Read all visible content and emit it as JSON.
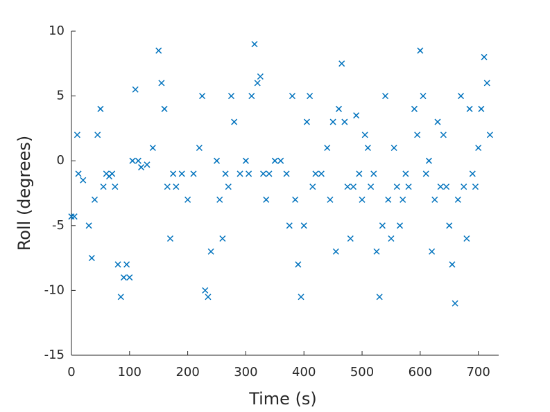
{
  "chart_data": {
    "type": "scatter",
    "x_label": "Time (s)",
    "y_label": "Roll (degrees)",
    "marker": "x",
    "color": "#0072bd",
    "xlim": [
      0,
      735
    ],
    "ylim": [
      -15,
      10
    ],
    "xticks": [
      0,
      100,
      200,
      300,
      400,
      500,
      600,
      700
    ],
    "yticks": [
      -15,
      -10,
      -5,
      0,
      5,
      10
    ],
    "x": [
      0,
      5,
      10,
      12,
      20,
      30,
      35,
      40,
      45,
      50,
      55,
      60,
      65,
      70,
      75,
      80,
      85,
      90,
      95,
      100,
      105,
      110,
      115,
      120,
      130,
      140,
      150,
      155,
      160,
      165,
      170,
      175,
      180,
      190,
      200,
      210,
      220,
      225,
      230,
      235,
      240,
      250,
      255,
      260,
      265,
      270,
      275,
      280,
      290,
      300,
      305,
      310,
      315,
      320,
      325,
      330,
      335,
      340,
      350,
      360,
      370,
      375,
      380,
      385,
      390,
      395,
      400,
      405,
      410,
      415,
      420,
      430,
      440,
      445,
      450,
      455,
      460,
      465,
      470,
      475,
      480,
      485,
      490,
      495,
      500,
      505,
      510,
      515,
      520,
      525,
      530,
      535,
      540,
      545,
      550,
      555,
      560,
      565,
      570,
      575,
      580,
      590,
      595,
      600,
      605,
      610,
      615,
      620,
      625,
      630,
      635,
      640,
      645,
      650,
      655,
      660,
      665,
      670,
      675,
      680,
      685,
      690,
      695,
      700,
      705,
      710,
      715,
      720
    ],
    "values": [
      -4.3,
      -4.3,
      2,
      -1,
      -1.5,
      -5,
      -7.5,
      -3,
      2,
      4,
      -2,
      -1,
      -1.2,
      -1,
      -2,
      -8,
      -10.5,
      -9,
      -8,
      -9,
      0,
      5.5,
      0,
      -0.5,
      -0.3,
      1,
      8.5,
      6,
      4,
      -2,
      -6,
      -1,
      -2,
      -1,
      -3,
      -1,
      1,
      5,
      -10,
      -10.5,
      -7,
      0,
      -3,
      -6,
      -1,
      -2,
      5,
      3,
      -1,
      0,
      -1,
      5,
      9,
      6,
      6.5,
      -1,
      -3,
      -1,
      0,
      0,
      -1,
      -5,
      5,
      -3,
      -8,
      -10.5,
      -5,
      3,
      5,
      -2,
      -1,
      -1,
      1,
      -3,
      3,
      -7,
      4,
      7.5,
      3,
      -2,
      -6,
      -2,
      3.5,
      -1,
      -3,
      2,
      1,
      -2,
      -1,
      -7,
      -10.5,
      -5,
      5,
      -3,
      -6,
      1,
      -2,
      -5,
      -3,
      -1,
      -2,
      4,
      2,
      8.5,
      5,
      -1,
      0,
      -7,
      -3,
      3,
      -2,
      2,
      -2,
      -5,
      -8,
      -11,
      -3,
      5,
      -2,
      -6,
      4,
      -1,
      -2,
      1,
      4,
      8,
      6,
      2
    ]
  }
}
